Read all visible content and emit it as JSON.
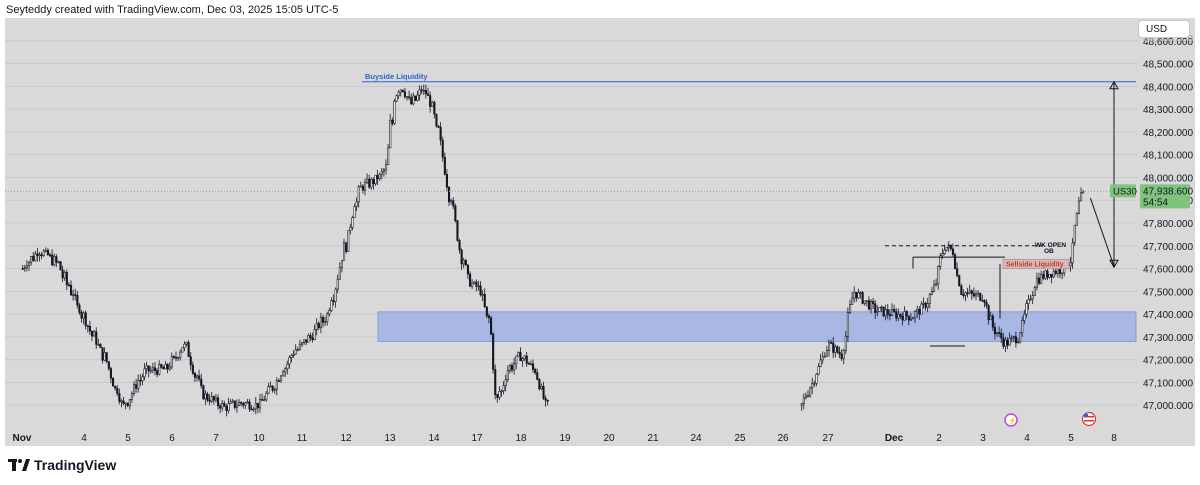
{
  "header": {
    "attribution": "Seyteddy created with TradingView.com, Dec 03, 2025 15:05 UTC-5"
  },
  "currency_button": {
    "label": "USD"
  },
  "footer": {
    "brand": "TradingView"
  },
  "colors": {
    "background": "#d9d9d9",
    "candle_up": "#ffffff",
    "candle_down": "#131722",
    "buyside_line": "#2f5fd0",
    "zone_fill": "#9fb0e4",
    "price_badge": "#7fc37c",
    "sellside_box": "#d8b8b8",
    "sellside_text": "#c0392b"
  },
  "chart_data": {
    "type": "candlestick",
    "symbol_badge": "US30",
    "last_price": "47,938.600",
    "countdown": "54:54",
    "y_ticks": [
      48600,
      48500,
      48400,
      48300,
      48200,
      48100,
      48000,
      47900,
      47800,
      47700,
      47600,
      47500,
      47400,
      47300,
      47200,
      47100,
      47000
    ],
    "y_tick_labels": [
      "48,600.000",
      "48,500.000",
      "48,400.000",
      "48,300.000",
      "48,200.000",
      "48,100.000",
      "48,000.000",
      "47,900.000",
      "47,800.000",
      "47,700.000",
      "47,600.000",
      "47,500.000",
      "47,400.000",
      "47,300.000",
      "47,200.000",
      "47,100.000",
      "47,000.000"
    ],
    "ylim": [
      46900,
      48700
    ],
    "x_ticks": [
      "Nov",
      "4",
      "5",
      "6",
      "7",
      "10",
      "11",
      "12",
      "13",
      "14",
      "17",
      "18",
      "19",
      "20",
      "21",
      "24",
      "25",
      "26",
      "27",
      "Dec",
      "2",
      "3",
      "4",
      "5",
      "8"
    ],
    "price_path": [
      {
        "x": 0,
        "y": 47600
      },
      {
        "x": 0.3,
        "y": 47680
      },
      {
        "x": 0.6,
        "y": 47620
      },
      {
        "x": 1.0,
        "y": 47390
      },
      {
        "x": 1.5,
        "y": 47200
      },
      {
        "x": 1.9,
        "y": 46990
      },
      {
        "x": 2.4,
        "y": 47150
      },
      {
        "x": 2.9,
        "y": 47160
      },
      {
        "x": 3.3,
        "y": 47270
      },
      {
        "x": 3.7,
        "y": 47050
      },
      {
        "x": 4.2,
        "y": 46990
      },
      {
        "x": 4.6,
        "y": 47010
      },
      {
        "x": 5.0,
        "y": 47000
      },
      {
        "x": 5.4,
        "y": 47100
      },
      {
        "x": 5.8,
        "y": 47230
      },
      {
        "x": 6.2,
        "y": 47300
      },
      {
        "x": 6.6,
        "y": 47400
      },
      {
        "x": 7.0,
        "y": 47700
      },
      {
        "x": 7.3,
        "y": 47950
      },
      {
        "x": 7.7,
        "y": 47990
      },
      {
        "x": 7.95,
        "y": 48050
      },
      {
        "x": 8.1,
        "y": 48350
      },
      {
        "x": 8.25,
        "y": 48400
      },
      {
        "x": 8.5,
        "y": 48320
      },
      {
        "x": 8.75,
        "y": 48390
      },
      {
        "x": 9.0,
        "y": 48300
      },
      {
        "x": 9.3,
        "y": 48000
      },
      {
        "x": 9.6,
        "y": 47700
      },
      {
        "x": 9.8,
        "y": 47550
      },
      {
        "x": 10.1,
        "y": 47500
      },
      {
        "x": 10.3,
        "y": 47350
      },
      {
        "x": 10.45,
        "y": 47000
      },
      {
        "x": 10.7,
        "y": 47150
      },
      {
        "x": 11.0,
        "y": 47220
      },
      {
        "x": 11.3,
        "y": 47160
      },
      {
        "x": 11.6,
        "y": 47000
      },
      {
        "x": 17.4,
        "y": 47000
      },
      {
        "x": 17.7,
        "y": 47120
      },
      {
        "x": 18.0,
        "y": 47270
      },
      {
        "x": 18.2,
        "y": 47220
      },
      {
        "x": 18.4,
        "y": 47500
      },
      {
        "x": 18.7,
        "y": 47420
      },
      {
        "x": 19.0,
        "y": 47400
      },
      {
        "x": 19.4,
        "y": 47390
      },
      {
        "x": 19.7,
        "y": 47440
      },
      {
        "x": 19.9,
        "y": 47520
      },
      {
        "x": 20.1,
        "y": 47700
      },
      {
        "x": 20.3,
        "y": 47680
      },
      {
        "x": 20.5,
        "y": 47500
      },
      {
        "x": 20.8,
        "y": 47480
      },
      {
        "x": 21.0,
        "y": 47480
      },
      {
        "x": 21.2,
        "y": 47350
      },
      {
        "x": 21.5,
        "y": 47270
      },
      {
        "x": 21.8,
        "y": 47300
      },
      {
        "x": 22.0,
        "y": 47430
      },
      {
        "x": 22.2,
        "y": 47550
      },
      {
        "x": 22.5,
        "y": 47580
      },
      {
        "x": 22.8,
        "y": 47600
      },
      {
        "x": 23.0,
        "y": 47640
      },
      {
        "x": 23.15,
        "y": 47870
      },
      {
        "x": 23.3,
        "y": 47938.6
      }
    ],
    "annotations": {
      "buyside_label": "Buyside Liquidity",
      "buyside_level": 48420,
      "zone": [
        47280,
        47410
      ],
      "dashed_level": 47700,
      "solid_level": 47650,
      "sellside_label": "Sellside Liquidity",
      "sellside_box": [
        47600,
        47640
      ],
      "wk_open_label": "WK OPEN",
      "ob_label": "OB",
      "projection": [
        {
          "x": 23.45,
          "y": 47910
        },
        {
          "x": 24.1,
          "y": 47610
        },
        {
          "x": 24.8,
          "y": 48420
        }
      ],
      "bottom_line_level": 47260
    }
  }
}
